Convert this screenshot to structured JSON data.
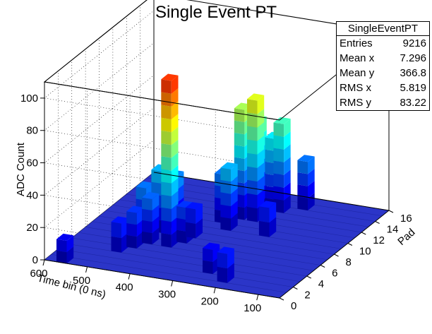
{
  "title": "Single Event PT",
  "stats": {
    "name": "SingleEventPT",
    "rows": [
      {
        "label": "Entries",
        "value": "9216"
      },
      {
        "label": "Mean x",
        "value": "7.296"
      },
      {
        "label": "Mean y",
        "value": "366.8"
      },
      {
        "label": "RMS x",
        "value": "5.819"
      },
      {
        "label": "RMS y",
        "value": "83.22"
      }
    ]
  },
  "chart_data": {
    "type": "lego3d",
    "title": "Single Event PT",
    "xlabel": "Pad",
    "ylabel": "Time bin (0 ns)",
    "zlabel": "ADC Count",
    "xlim": [
      0,
      16
    ],
    "ylim": [
      50,
      600
    ],
    "zlim": [
      0,
      110
    ],
    "x_ticks": [
      "0",
      "2",
      "4",
      "6",
      "8",
      "10",
      "12",
      "14",
      "16"
    ],
    "y_ticks": [
      "100",
      "200",
      "300",
      "400",
      "500",
      "600"
    ],
    "z_ticks": [
      "0",
      "20",
      "40",
      "60",
      "80",
      "100"
    ],
    "grid": true,
    "colormap": [
      "#000080",
      "#0000ff",
      "#0080ff",
      "#00ffff",
      "#80ff80",
      "#ffff00",
      "#ff8000",
      "#ff0000"
    ],
    "floor_color": "#2b35c8",
    "columns": [
      {
        "pad": 5.5,
        "tb": 395,
        "adc": 103
      },
      {
        "pad": 6.5,
        "tb": 375,
        "adc": 22
      },
      {
        "pad": 7.5,
        "tb": 370,
        "adc": 18
      },
      {
        "pad": 9.5,
        "tb": 320,
        "adc": 38
      },
      {
        "pad": 10.5,
        "tb": 350,
        "adc": 30
      },
      {
        "pad": 11.5,
        "tb": 290,
        "adc": 75
      },
      {
        "pad": 11.5,
        "tb": 320,
        "adc": 68
      },
      {
        "pad": 12.5,
        "tb": 300,
        "adc": 58
      },
      {
        "pad": 13.5,
        "tb": 260,
        "adc": 55
      },
      {
        "pad": 13.5,
        "tb": 280,
        "adc": 45
      },
      {
        "pad": 14.5,
        "tb": 220,
        "adc": 30
      },
      {
        "pad": 8.5,
        "tb": 430,
        "adc": 32
      },
      {
        "pad": 7.5,
        "tb": 450,
        "adc": 38
      },
      {
        "pad": 6.5,
        "tb": 470,
        "adc": 30
      },
      {
        "pad": 5.5,
        "tb": 440,
        "adc": 28
      },
      {
        "pad": 4.5,
        "tb": 460,
        "adc": 22
      },
      {
        "pad": 3.5,
        "tb": 480,
        "adc": 18
      },
      {
        "pad": 2.5,
        "tb": 250,
        "adc": 15
      },
      {
        "pad": 1.5,
        "tb": 200,
        "adc": 18
      },
      {
        "pad": 0.5,
        "tb": 560,
        "adc": 14
      },
      {
        "pad": 9.5,
        "tb": 230,
        "adc": 18
      }
    ]
  }
}
